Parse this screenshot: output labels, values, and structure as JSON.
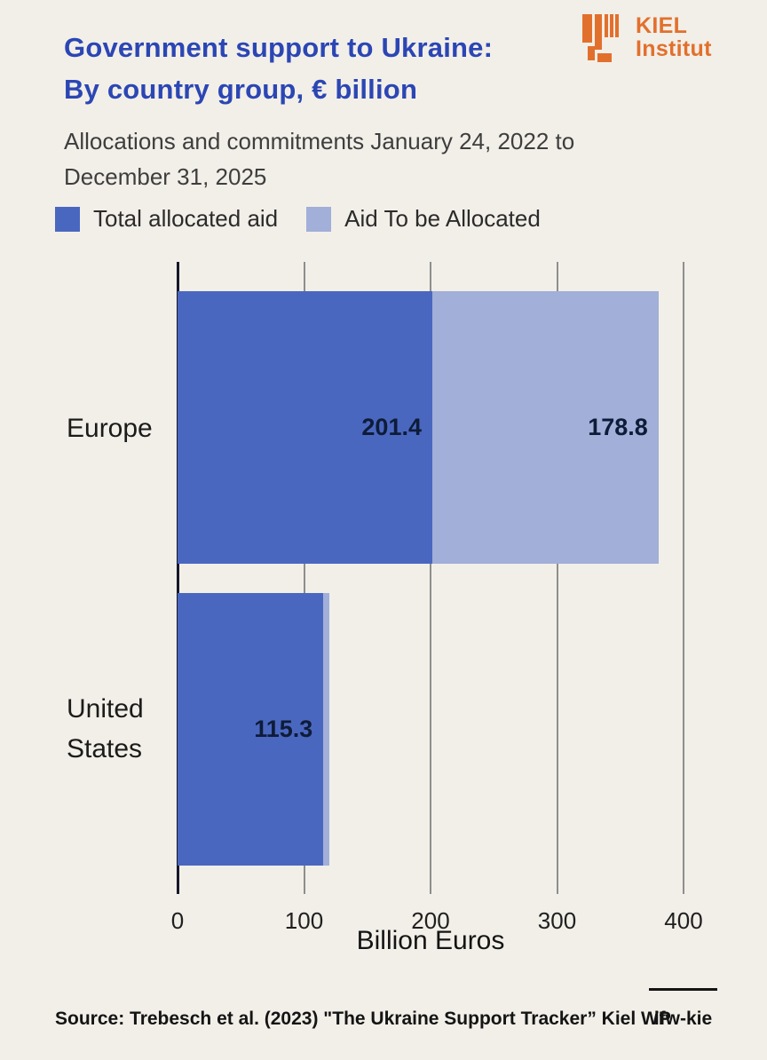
{
  "header": {
    "title_line1": "Government support to Ukraine:",
    "title_line2": "By country group, € billion",
    "subtitle_line1": "Allocations and commitments January 24, 2022 to",
    "subtitle_line2": "December 31, 2025",
    "logo_line1": "KIEL",
    "logo_line2": "Institut",
    "logo_color": "#e2702d"
  },
  "legend": [
    {
      "label": "Total allocated aid",
      "color": "#4a67c0"
    },
    {
      "label": "Aid To be Allocated",
      "color": "#a1afd9"
    }
  ],
  "chart_data": {
    "type": "bar",
    "orientation": "horizontal",
    "stacked": true,
    "categories": [
      "Europe",
      "United States"
    ],
    "series": [
      {
        "name": "Total allocated aid",
        "color": "#4a67c0",
        "values": [
          201.4,
          115.3
        ],
        "labels": [
          "201.4",
          "115.3"
        ]
      },
      {
        "name": "Aid To be Allocated",
        "color": "#a1afd9",
        "values": [
          178.8,
          4.5
        ],
        "labels": [
          "178.8",
          ""
        ]
      }
    ],
    "xlabel": "Billion Euros",
    "xlim": [
      0,
      420
    ],
    "xticks": [
      0,
      100,
      200,
      300,
      400
    ],
    "grid": "vertical",
    "legend_position": "top"
  },
  "footer": {
    "source": "Source: Trebesch et al. (2023) \"The Ukraine Support Tracker” Kiel WP",
    "brand": "ifw-kie"
  }
}
